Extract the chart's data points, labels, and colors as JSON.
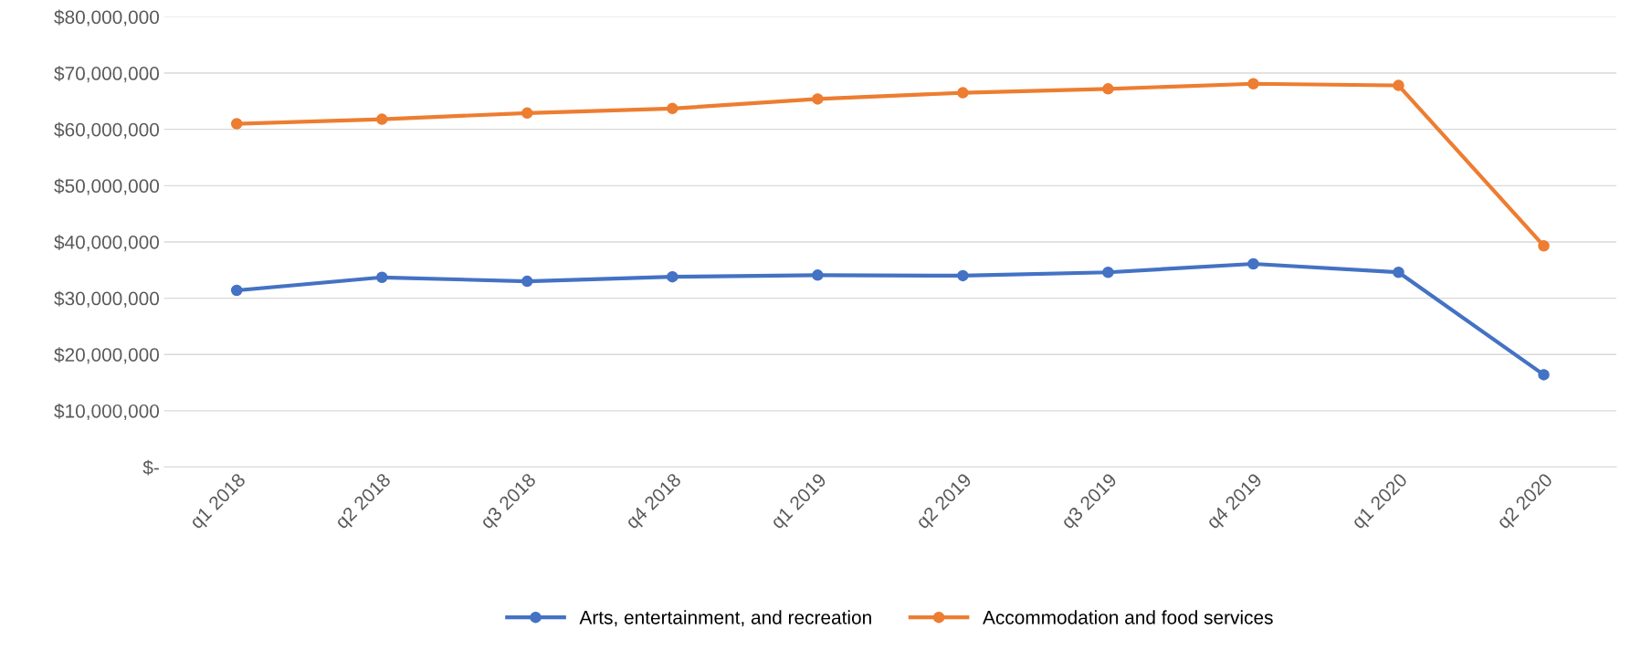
{
  "chart_data": {
    "type": "line",
    "categories": [
      "q1 2018",
      "q2 2018",
      "q3 2018",
      "q4 2018",
      "q1 2019",
      "q2 2019",
      "q3 2019",
      "q4 2019",
      "q1 2020",
      "q2 2020"
    ],
    "series": [
      {
        "name": "Arts, entertainment, and recreation",
        "color": "#4472c4",
        "values": [
          31400000,
          33700000,
          33000000,
          33800000,
          34100000,
          34000000,
          34600000,
          36100000,
          34600000,
          16400000
        ]
      },
      {
        "name": "Accommodation and food services",
        "color": "#ed7d31",
        "values": [
          61000000,
          61800000,
          62900000,
          63700000,
          65400000,
          66500000,
          67200000,
          68100000,
          67800000,
          39300000
        ]
      }
    ],
    "ylim": [
      0,
      80000000
    ],
    "yticks": [
      {
        "value": 0,
        "label": "$-"
      },
      {
        "value": 10000000,
        "label": "$10,000,000"
      },
      {
        "value": 20000000,
        "label": "$20,000,000"
      },
      {
        "value": 30000000,
        "label": "$30,000,000"
      },
      {
        "value": 40000000,
        "label": "$40,000,000"
      },
      {
        "value": 50000000,
        "label": "$50,000,000"
      },
      {
        "value": 60000000,
        "label": "$60,000,000"
      },
      {
        "value": 70000000,
        "label": "$70,000,000"
      },
      {
        "value": 80000000,
        "label": "$80,000,000"
      }
    ],
    "grid": "y",
    "legend": "bottom",
    "marker": "circle",
    "line_style": "solid"
  }
}
